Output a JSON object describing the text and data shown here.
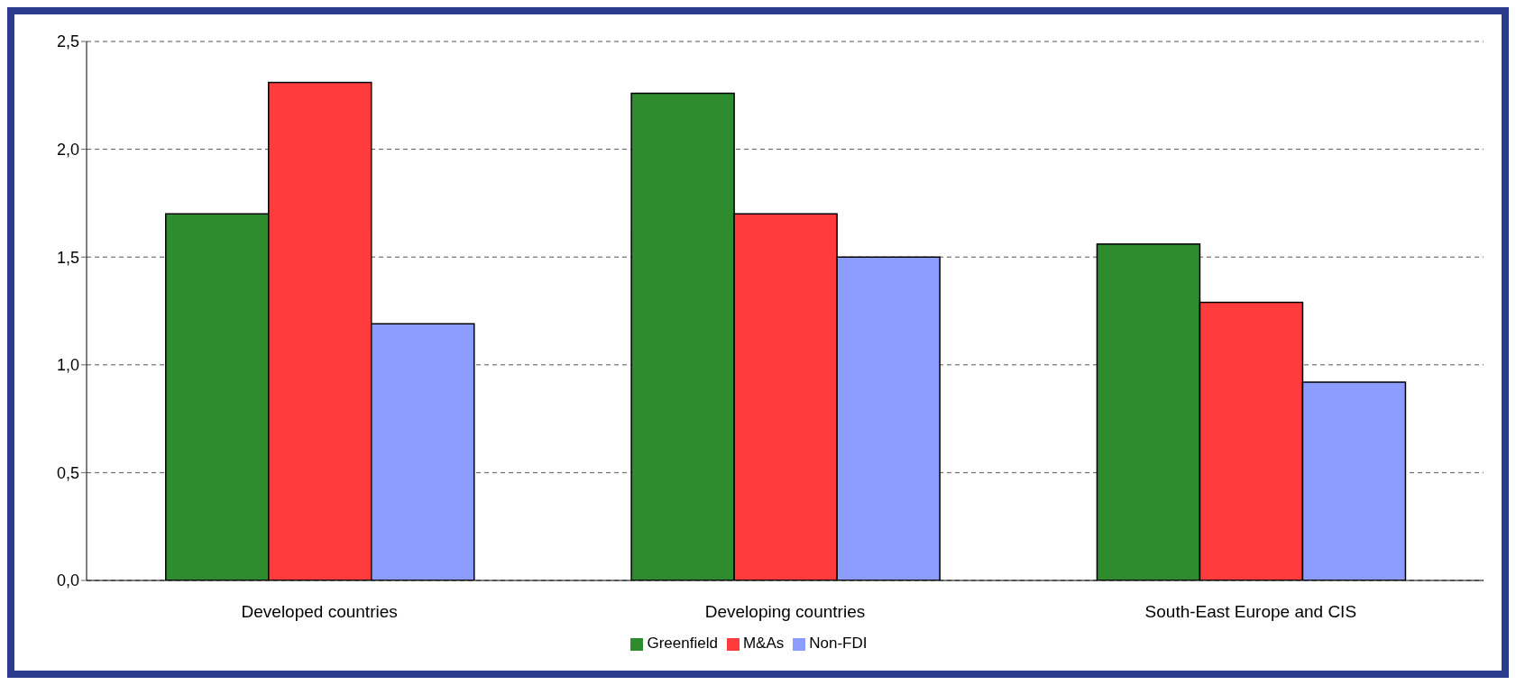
{
  "chart_data": {
    "type": "bar",
    "categories": [
      "Developed countries",
      "Developing countries",
      "South-East Europe and CIS"
    ],
    "series": [
      {
        "name": "Greenfield",
        "color": "#2e8b2e",
        "values": [
          1.7,
          2.26,
          1.56
        ]
      },
      {
        "name": "M&As",
        "color": "#ff3b3b",
        "values": [
          2.31,
          1.7,
          1.29
        ]
      },
      {
        "name": "Non-FDI",
        "color": "#8c9cff",
        "values": [
          1.19,
          1.5,
          0.92
        ]
      }
    ],
    "ylim": [
      0,
      2.5
    ],
    "yticks": [
      {
        "value": 0,
        "label": "0,0"
      },
      {
        "value": 0.5,
        "label": "0,5"
      },
      {
        "value": 1,
        "label": "1,0"
      },
      {
        "value": 1.5,
        "label": "1,5"
      },
      {
        "value": 2,
        "label": "2,0"
      },
      {
        "value": 2.5,
        "label": "2,5"
      }
    ],
    "grid": "y",
    "legend": "bottom"
  }
}
